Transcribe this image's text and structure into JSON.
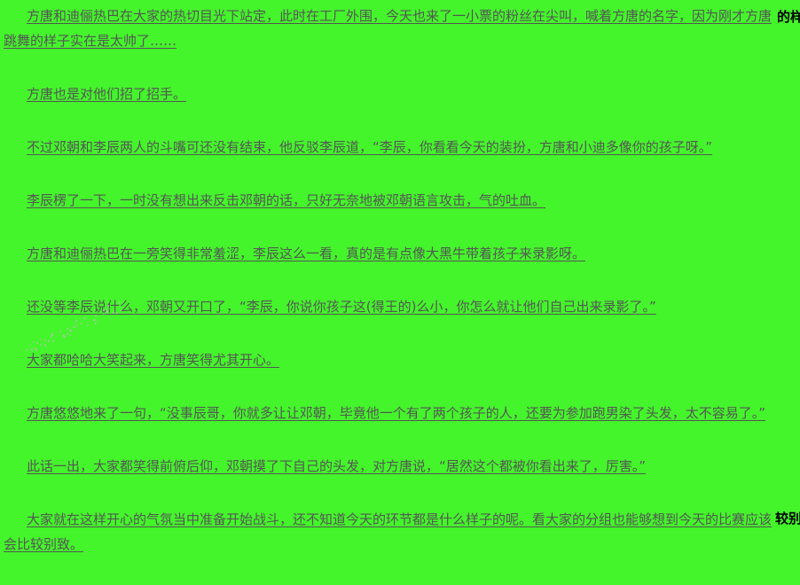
{
  "colors": {
    "background": "#44f52b",
    "text": "#555555",
    "edge_overflow_text_color": "#000000",
    "watermark_speckle": "#b9bcb4"
  },
  "paragraphs": [
    "方唐和迪俪热巴在大家的热切目光下站定，此时在工厂外围，今天也来了一小票的粉丝在尖叫，喊着方唐的名字，因为刚才方唐跳舞的样子实在是太帅了……",
    "方唐也是对他们招了招手。",
    "不过邓朝和李辰两人的斗嘴可还没有结束，他反驳李辰道，“李辰，你看看今天的装扮，方唐和小迪多像你的孩子呀。”",
    "李辰楞了一下，一时没有想出来反击邓朝的话，只好无奈地被邓朝语言攻击，气的吐血。",
    "方唐和迪俪热巴在一旁笑得非常羞涩，李辰这么一看，真的是有点像大黑牛带着孩子来录影呀。",
    "还没等李辰说什么，邓朝又开口了，“李辰，你说你孩子这(得王的)么小，你怎么就让他们自己出来录影了。”",
    "大家都哈哈大笑起来，方唐笑得尤其开心。",
    "方唐悠悠地来了一句，“没事辰哥，你就多让让邓朝，毕竟他一个有了两个孩子的人，还要为参加跑男染了头发，太不容易了。”",
    "此话一出，大家都笑得前俯后仰，邓朝摸了下自己的头发，对方唐说，“居然这个都被你看出来了，厉害。”",
    "大家就在这样开心的气氛当中准备开始战斗，还不知道今天的环节都是什么样子的呢。看大家的分组也能够想到今天的比赛应该会比较别致。"
  ],
  "edge_overflow_text": [
    "的样",
    "较别"
  ]
}
